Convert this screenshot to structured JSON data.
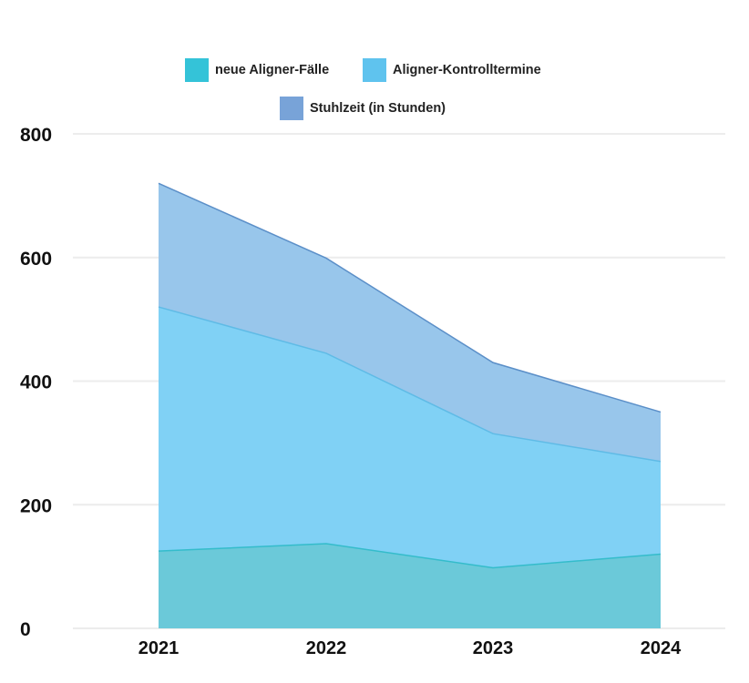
{
  "chart_data": {
    "type": "area",
    "stacked": true,
    "x": [
      "2021",
      "2022",
      "2023",
      "2024"
    ],
    "series": [
      {
        "name": "neue Aligner-Fälle",
        "values": [
          125,
          137,
          98,
          120
        ],
        "color": "#34c3d8"
      },
      {
        "name": "Aligner-Kontrolltermine",
        "values": [
          395,
          308,
          217,
          150
        ],
        "color": "#5fc3ee"
      },
      {
        "name": "Stuhlzeit (in Stunden)",
        "values": [
          200,
          154,
          115,
          80
        ],
        "color": "#78a3d8"
      }
    ],
    "y_ticks": [
      "0",
      "200",
      "400",
      "600",
      "800"
    ],
    "ylim": [
      0,
      800
    ],
    "grid": true,
    "legend_position": "top-center",
    "title": "",
    "xlabel": "",
    "ylabel": ""
  }
}
